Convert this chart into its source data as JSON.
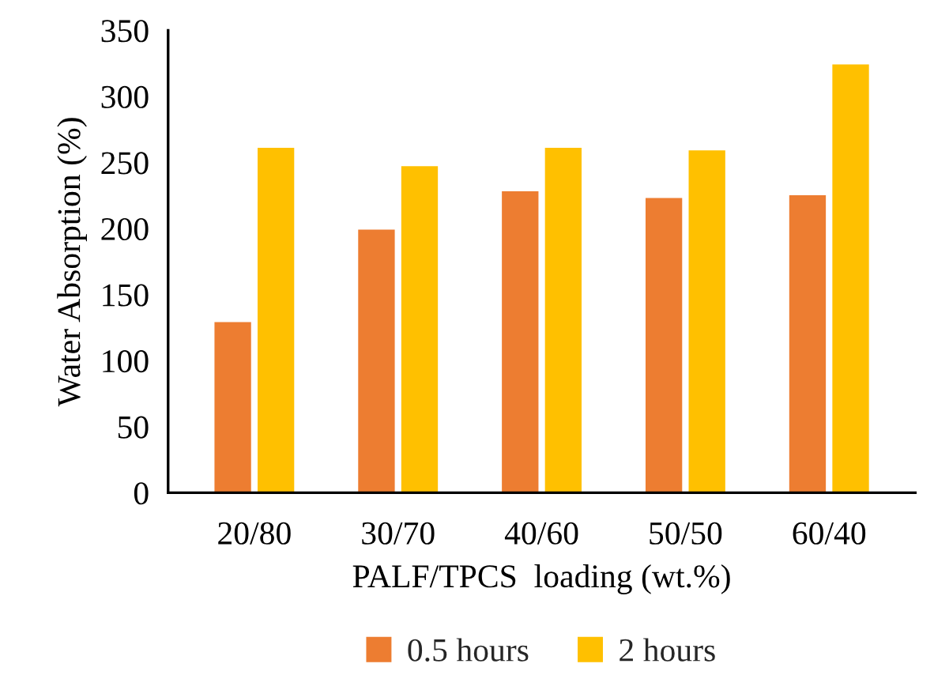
{
  "chart_data": {
    "type": "bar",
    "xlabel": "PALF/TPCS  loading (wt.%)",
    "ylabel": "Water Absorption (%)",
    "categories": [
      "20/80",
      "30/70",
      "40/60",
      "50/50",
      "60/40"
    ],
    "series": [
      {
        "name": "0.5 hours",
        "color": "#ed7d31",
        "values": [
          130,
          200,
          229,
          224,
          226
        ]
      },
      {
        "name": "2 hours",
        "color": "#ffc000",
        "values": [
          262,
          248,
          262,
          260,
          325
        ]
      }
    ],
    "ylim": [
      0,
      350
    ],
    "yticks": [
      0,
      50,
      100,
      150,
      200,
      250,
      300,
      350
    ],
    "grid": false,
    "legend": "bottom"
  }
}
